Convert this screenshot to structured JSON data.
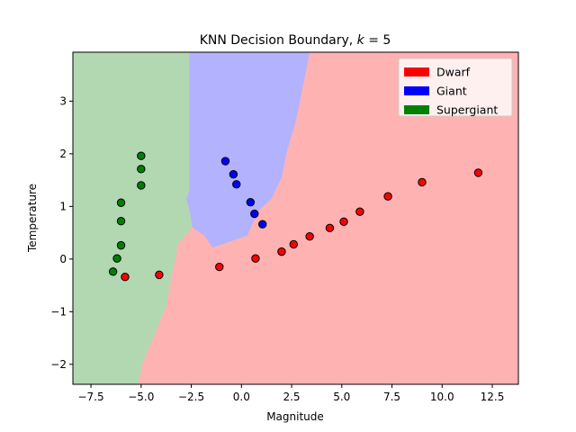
{
  "chart_data": {
    "type": "scatter",
    "title_main": "KNN Decision Boundary, ",
    "title_k": "k",
    "title_eq": " = 5",
    "xlabel": "Magnitude",
    "ylabel": "Temperature",
    "xlim": [
      -8.4,
      13.8
    ],
    "ylim": [
      -2.38,
      3.93
    ],
    "xticks": [
      -7.5,
      -5.0,
      -2.5,
      0.0,
      2.5,
      5.0,
      7.5,
      10.0,
      12.5
    ],
    "xtick_labels": [
      "−7.5",
      "−5.0",
      "−2.5",
      "0.0",
      "2.5",
      "5.0",
      "7.5",
      "10.0",
      "12.5"
    ],
    "yticks": [
      -2,
      -1,
      0,
      1,
      2,
      3
    ],
    "ytick_labels": [
      "−2",
      "−1",
      "0",
      "1",
      "2",
      "3"
    ],
    "legend_position": "top-right",
    "classes": [
      {
        "name": "Dwarf",
        "color": "#ff0000",
        "region_color": "#ffb2b2"
      },
      {
        "name": "Giant",
        "color": "#0000ff",
        "region_color": "#b2b2ff"
      },
      {
        "name": "Supergiant",
        "color": "#008000",
        "region_color": "#b2d8b2"
      }
    ],
    "regions": {
      "supergiant": [
        [
          -8.4,
          3.93
        ],
        [
          -2.6,
          3.93
        ],
        [
          -2.6,
          1.3
        ],
        [
          -2.75,
          1.15
        ],
        [
          -2.55,
          0.85
        ],
        [
          -2.45,
          0.6
        ],
        [
          -2.9,
          0.4
        ],
        [
          -3.2,
          0.25
        ],
        [
          -3.25,
          0.05
        ],
        [
          -3.45,
          -0.25
        ],
        [
          -3.75,
          -0.9
        ],
        [
          -4.4,
          -1.5
        ],
        [
          -4.9,
          -1.95
        ],
        [
          -5.15,
          -2.38
        ],
        [
          -8.4,
          -2.38
        ]
      ],
      "giant": [
        [
          -2.6,
          3.93
        ],
        [
          3.4,
          3.93
        ],
        [
          2.7,
          2.6
        ],
        [
          2.3,
          2.1
        ],
        [
          2.0,
          1.55
        ],
        [
          1.5,
          1.15
        ],
        [
          0.8,
          0.9
        ],
        [
          0.3,
          0.45
        ],
        [
          -0.8,
          0.3
        ],
        [
          -1.45,
          0.22
        ],
        [
          -1.85,
          0.45
        ],
        [
          -2.45,
          0.6
        ],
        [
          -2.55,
          0.85
        ],
        [
          -2.75,
          1.15
        ],
        [
          -2.6,
          1.3
        ]
      ]
    },
    "series": [
      {
        "name": "Dwarf",
        "class_index": 0,
        "points": [
          [
            -5.8,
            -0.34
          ],
          [
            -4.1,
            -0.3
          ],
          [
            -1.1,
            -0.15
          ],
          [
            0.7,
            0.01
          ],
          [
            2.0,
            0.14
          ],
          [
            2.6,
            0.28
          ],
          [
            3.4,
            0.43
          ],
          [
            4.4,
            0.59
          ],
          [
            5.1,
            0.71
          ],
          [
            5.9,
            0.9
          ],
          [
            7.3,
            1.19
          ],
          [
            9.0,
            1.46
          ],
          [
            11.8,
            1.64
          ]
        ]
      },
      {
        "name": "Giant",
        "class_index": 1,
        "points": [
          [
            -0.8,
            1.86
          ],
          [
            -0.4,
            1.61
          ],
          [
            -0.25,
            1.42
          ],
          [
            0.45,
            1.08
          ],
          [
            0.65,
            0.86
          ],
          [
            1.05,
            0.66
          ]
        ]
      },
      {
        "name": "Supergiant",
        "class_index": 2,
        "points": [
          [
            -5.0,
            1.96
          ],
          [
            -5.0,
            1.71
          ],
          [
            -5.0,
            1.4
          ],
          [
            -6.0,
            1.07
          ],
          [
            -6.0,
            0.72
          ],
          [
            -6.0,
            0.26
          ],
          [
            -6.2,
            0.01
          ],
          [
            -6.4,
            -0.24
          ]
        ]
      }
    ]
  }
}
